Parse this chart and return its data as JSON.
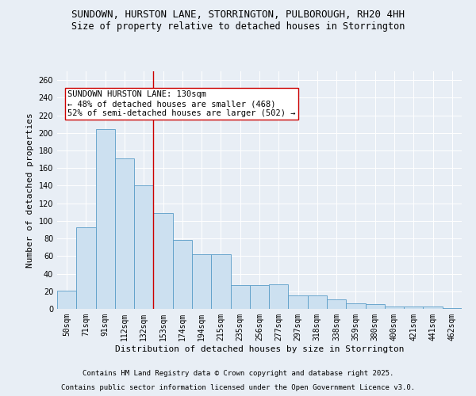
{
  "title_line1": "SUNDOWN, HURSTON LANE, STORRINGTON, PULBOROUGH, RH20 4HH",
  "title_line2": "Size of property relative to detached houses in Storrington",
  "xlabel": "Distribution of detached houses by size in Storrington",
  "ylabel": "Number of detached properties",
  "categories": [
    "50sqm",
    "71sqm",
    "91sqm",
    "112sqm",
    "132sqm",
    "153sqm",
    "174sqm",
    "194sqm",
    "215sqm",
    "235sqm",
    "256sqm",
    "277sqm",
    "297sqm",
    "318sqm",
    "338sqm",
    "359sqm",
    "380sqm",
    "400sqm",
    "421sqm",
    "441sqm",
    "462sqm"
  ],
  "values": [
    21,
    93,
    204,
    171,
    140,
    109,
    78,
    62,
    62,
    27,
    27,
    28,
    15,
    15,
    11,
    6,
    5,
    3,
    3,
    3,
    1
  ],
  "bar_color": "#cce0f0",
  "bar_edge_color": "#5a9dc8",
  "vline_x": 4.5,
  "vline_color": "#cc0000",
  "annotation_text": "SUNDOWN HURSTON LANE: 130sqm\n← 48% of detached houses are smaller (468)\n52% of semi-detached houses are larger (502) →",
  "annotation_box_color": "#ffffff",
  "annotation_box_edge": "#cc0000",
  "ylim": [
    0,
    270
  ],
  "yticks": [
    0,
    20,
    40,
    60,
    80,
    100,
    120,
    140,
    160,
    180,
    200,
    220,
    240,
    260
  ],
  "bg_color": "#e8eef5",
  "plot_bg_color": "#e8eef5",
  "footer_line1": "Contains HM Land Registry data © Crown copyright and database right 2025.",
  "footer_line2": "Contains public sector information licensed under the Open Government Licence v3.0.",
  "title_fontsize": 9,
  "subtitle_fontsize": 8.5,
  "axis_label_fontsize": 8,
  "tick_fontsize": 7,
  "annotation_fontsize": 7.5,
  "footer_fontsize": 6.5
}
